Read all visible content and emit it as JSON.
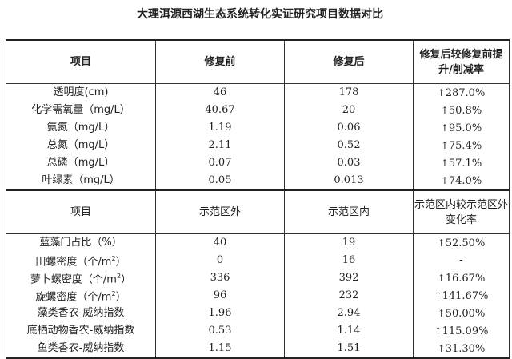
{
  "title": "大理洱源西湖生态系统转化实证研究项目数据对比",
  "section1": {
    "headers": [
      "项目",
      "修复前",
      "修复后",
      "修复后较修复前提升/削减率"
    ],
    "rows": [
      {
        "item": "透明度(cm)",
        "before": "46",
        "after": "178",
        "rate": "287.0%",
        "direction": "up"
      },
      {
        "item": "化学需氧量（mg/L）",
        "before": "40.67",
        "after": "20",
        "rate": "50.8%",
        "direction": "up"
      },
      {
        "item": "氨氮（mg/L）",
        "before": "1.19",
        "after": "0.06",
        "rate": "95.0%",
        "direction": "up"
      },
      {
        "item": "总氮（mg/L）",
        "before": "2.11",
        "after": "0.52",
        "rate": "75.4%",
        "direction": "up"
      },
      {
        "item": "总磷（mg/L）",
        "before": "0.07",
        "after": "0.03",
        "rate": "57.1%",
        "direction": "up"
      },
      {
        "item": "叶绿素（mg/L）",
        "before": "0.05",
        "after": "0.013",
        "rate": "74.0%",
        "direction": "up"
      }
    ]
  },
  "section2": {
    "headers": [
      "项目",
      "示范区外",
      "示范区内",
      "示范区内较示范区外变化率"
    ],
    "rows": [
      {
        "item": "蓝藻门占比（%）",
        "outside": "40",
        "inside": "19",
        "rate": "52.50%",
        "direction": "up"
      },
      {
        "item": "田螺密度（个/m",
        "sup": "2",
        "item_end": "）",
        "outside": "0",
        "inside": "16",
        "rate": "-",
        "direction": ""
      },
      {
        "item": "萝卜螺密度（个/m",
        "sup": "2",
        "item_end": "）",
        "outside": "336",
        "inside": "392",
        "rate": "16.67%",
        "direction": "up"
      },
      {
        "item": "旋螺密度（个/m",
        "sup": "2",
        "item_end": "）",
        "outside": "96",
        "inside": "232",
        "rate": "141.67%",
        "direction": "up"
      },
      {
        "item": "藻类香农-威纳指数",
        "outside": "1.96",
        "inside": "2.94",
        "rate": "50.00%",
        "direction": "up"
      },
      {
        "item": "底栖动物香农-威纳指数",
        "outside": "0.53",
        "inside": "1.14",
        "rate": "115.09%",
        "direction": "up"
      },
      {
        "item": "鱼类香农-威纳指数",
        "outside": "1.15",
        "inside": "1.51",
        "rate": "31.30%",
        "direction": "up"
      }
    ]
  },
  "arrow_glyph": "↑"
}
